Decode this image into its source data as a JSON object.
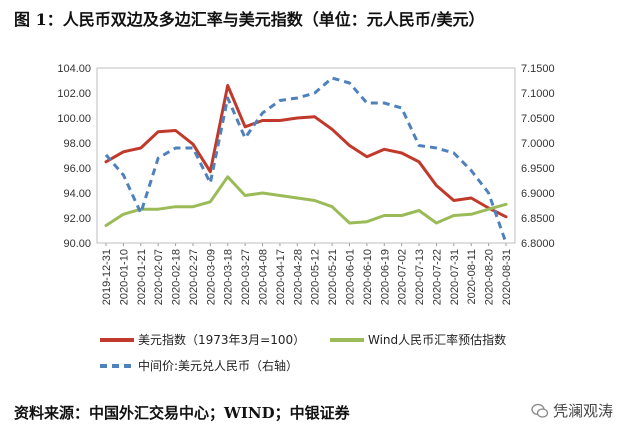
{
  "header": {
    "title": "图 1：人民币双边及多边汇率与美元指数（单位：元人民币/美元）"
  },
  "footer": {
    "source": "资料来源：中国外汇交易中心；WIND；中银证券",
    "watermark": "凭澜观涛"
  },
  "chart_data": {
    "type": "line",
    "x": [
      "2019-12-31",
      "2020-01-10",
      "2020-01-21",
      "2020-02-07",
      "2020-02-18",
      "2020-02-27",
      "2020-03-09",
      "2020-03-18",
      "2020-03-27",
      "2020-04-08",
      "2020-04-17",
      "2020-04-28",
      "2020-05-12",
      "2020-05-21",
      "2020-06-01",
      "2020-06-10",
      "2020-06-19",
      "2020-07-02",
      "2020-07-13",
      "2020-07-22",
      "2020-07-31",
      "2020-08-11",
      "2020-08-20",
      "2020-08-31"
    ],
    "y_left": {
      "ylim": [
        90,
        104
      ],
      "ticks": [
        "90.00",
        "92.00",
        "94.00",
        "96.00",
        "98.00",
        "100.00",
        "102.00",
        "104.00"
      ]
    },
    "y_right": {
      "ylim": [
        6.8,
        7.15
      ],
      "ticks": [
        "6.8000",
        "6.8500",
        "6.9000",
        "6.9500",
        "7.0000",
        "7.0500",
        "7.1000",
        "7.1500"
      ]
    },
    "series": [
      {
        "name": "美元指数（1973年3月=100）",
        "axis": "left",
        "color": "#c0392b",
        "style": "solid",
        "values": [
          96.5,
          97.3,
          97.6,
          98.9,
          99.0,
          97.9,
          95.7,
          102.6,
          99.3,
          99.8,
          99.8,
          100.0,
          100.1,
          99.1,
          97.8,
          96.9,
          97.5,
          97.2,
          96.5,
          94.6,
          93.4,
          93.6,
          92.8,
          92.1
        ]
      },
      {
        "name": "Wind人民币汇率预估指数",
        "axis": "left",
        "color": "#9bbb59",
        "style": "solid",
        "values": [
          91.4,
          92.3,
          92.7,
          92.7,
          92.9,
          92.9,
          93.3,
          95.3,
          93.8,
          94.0,
          93.8,
          93.6,
          93.4,
          92.9,
          91.6,
          91.7,
          92.2,
          92.2,
          92.6,
          91.6,
          92.2,
          92.3,
          92.7,
          93.1
        ]
      },
      {
        "name": "中间价:美元兑人民币（右轴）",
        "axis": "right",
        "color": "#4f81bd",
        "style": "dashed",
        "values": [
          6.9762,
          6.936,
          6.86,
          6.97,
          6.99,
          6.99,
          6.92,
          7.09,
          7.01,
          7.06,
          7.085,
          7.09,
          7.1,
          7.13,
          7.12,
          7.08,
          7.08,
          7.07,
          6.995,
          6.99,
          6.98,
          6.945,
          6.9,
          6.8
        ]
      }
    ]
  }
}
